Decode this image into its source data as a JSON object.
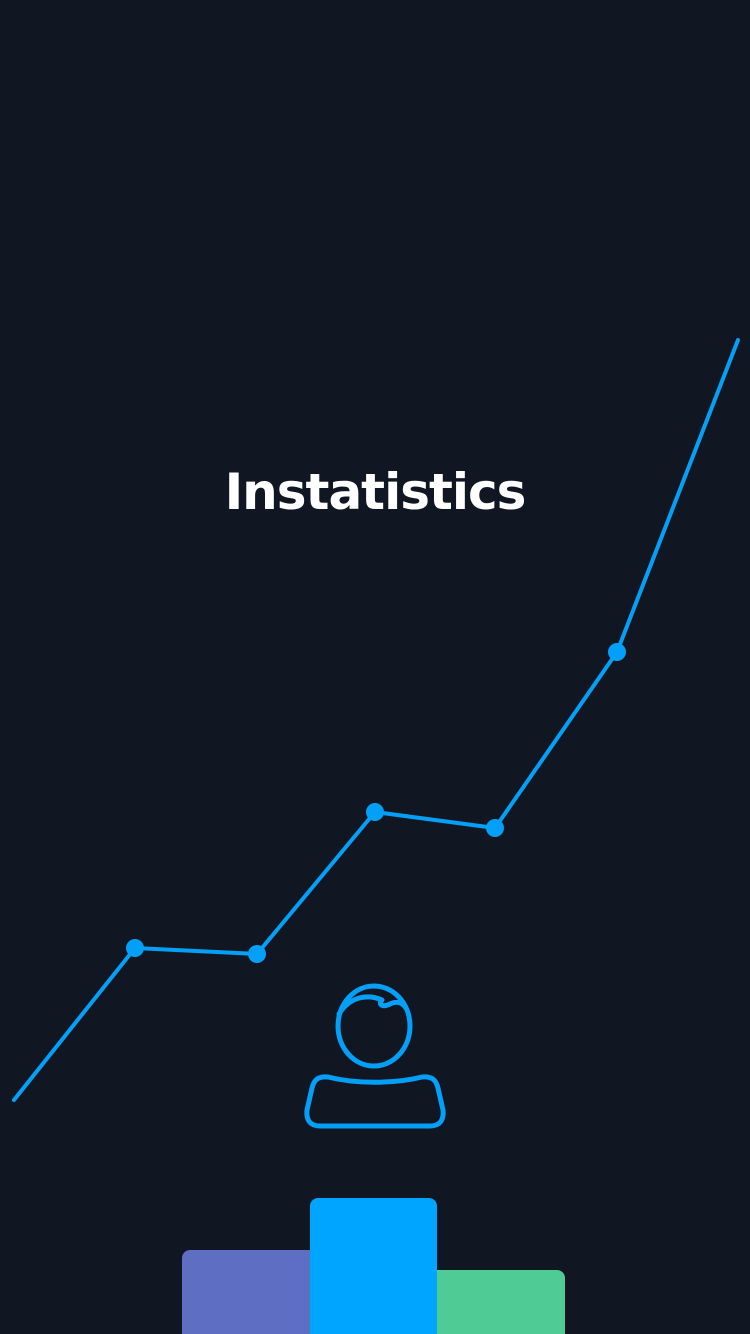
{
  "app": {
    "title": "Instatistics"
  },
  "colors": {
    "background": "#111722",
    "accent": "#04a0f8",
    "title_text": "#ffffff",
    "podium_left": "#5e6ec3",
    "podium_center": "#00a5ff",
    "podium_right": "#4fcc95"
  },
  "icons": {
    "trend_line": "line-chart-icon",
    "user": "user-icon",
    "podium": "podium-icon"
  },
  "splash": {
    "trend_points": 5,
    "podium_levels": [
      2,
      1,
      3
    ]
  }
}
